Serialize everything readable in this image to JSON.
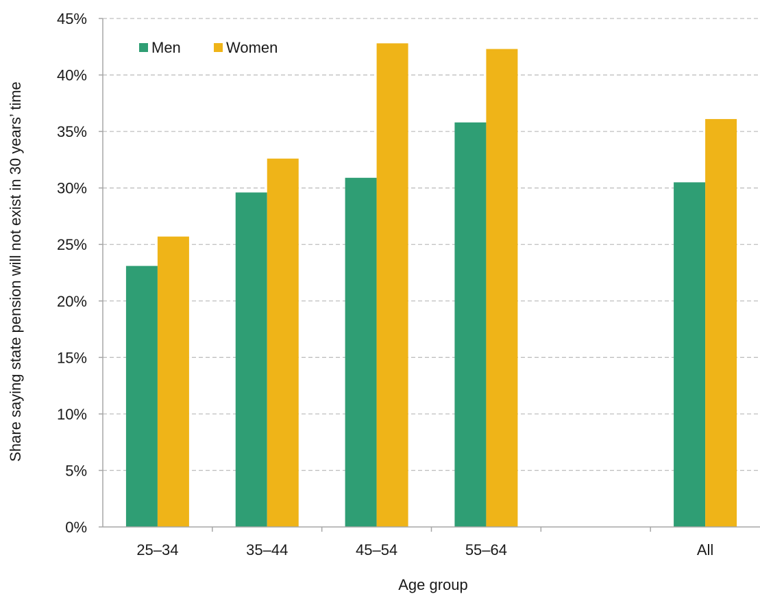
{
  "chart_data": {
    "type": "bar",
    "categories": [
      "25–34",
      "35–44",
      "45–54",
      "55–64",
      "",
      "All"
    ],
    "series": [
      {
        "name": "Men",
        "values": [
          23.1,
          29.6,
          30.9,
          35.8,
          null,
          30.5
        ],
        "color": "#2f9e74"
      },
      {
        "name": "Women",
        "values": [
          25.7,
          32.6,
          42.8,
          42.3,
          null,
          36.1
        ],
        "color": "#efb418"
      }
    ],
    "xlabel": "Age group",
    "ylabel": "Share saying state pension will not exist in 30 years’ time",
    "ylim": [
      0,
      45
    ],
    "yticks": [
      "0%",
      "5%",
      "10%",
      "15%",
      "20%",
      "25%",
      "30%",
      "35%",
      "40%",
      "45%"
    ],
    "grid": true,
    "legend_position": "top-left"
  }
}
